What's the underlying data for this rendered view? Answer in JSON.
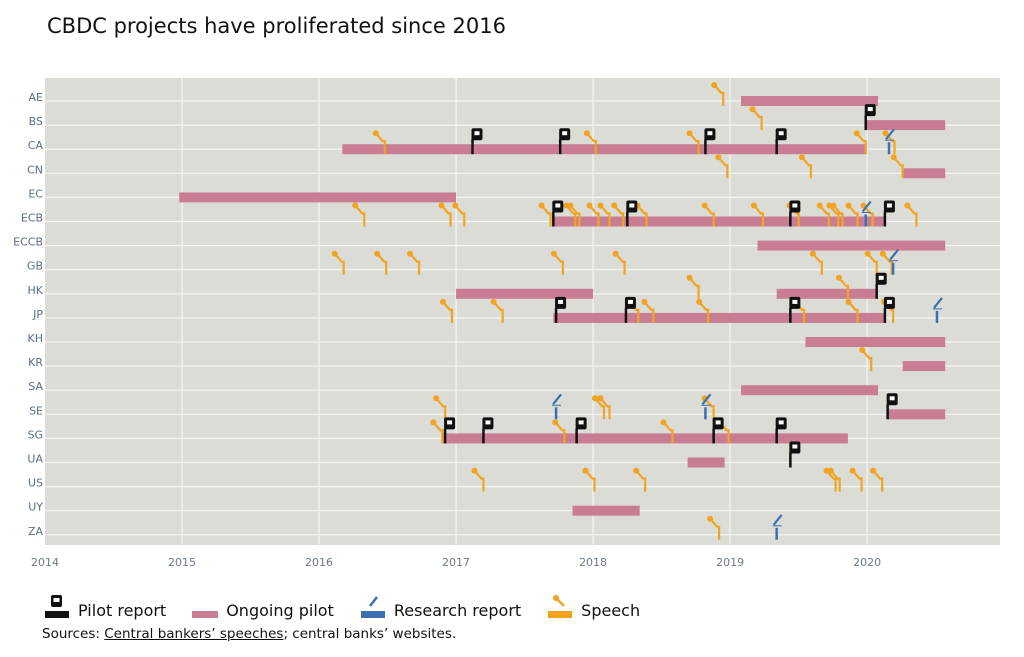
{
  "chart_data": {
    "type": "timeline",
    "title": "CBDC projects have proliferated since 2016",
    "xlim": [
      2014,
      2020.97
    ],
    "x_ticks": [
      "2014",
      "2015",
      "2016",
      "2017",
      "2018",
      "2019",
      "2020"
    ],
    "grid": true,
    "legend_placement": "bottom",
    "colors": {
      "pilot_report": "#111111",
      "ongoing_pilot": "#c97d93",
      "research_report": "#3d6fb0",
      "speech": "#f0a422",
      "background": "#dcdcd7"
    },
    "legend": [
      {
        "key": "pilot_report",
        "label": "Pilot report"
      },
      {
        "key": "ongoing_pilot",
        "label": "Ongoing pilot"
      },
      {
        "key": "research_report",
        "label": "Research report"
      },
      {
        "key": "speech",
        "label": "Speech"
      }
    ],
    "rows": [
      {
        "label": "AE",
        "pilots": [
          [
            2019.08,
            2020.08
          ]
        ],
        "pilot_reports": [],
        "research_reports": [],
        "speeches": [
          2018.95
        ]
      },
      {
        "label": "BS",
        "pilots": [
          [
            2019.99,
            2020.57
          ]
        ],
        "pilot_reports": [
          2019.99
        ],
        "research_reports": [],
        "speeches": [
          2019.23
        ]
      },
      {
        "label": "CA",
        "pilots": [
          [
            2016.17,
            2019.99
          ]
        ],
        "pilot_reports": [
          2017.12,
          2017.76,
          2018.82,
          2019.34
        ],
        "research_reports": [
          2020.16
        ],
        "speeches": [
          2016.48,
          2018.02,
          2018.77,
          2019.99,
          2020.2
        ]
      },
      {
        "label": "CN",
        "pilots": [
          [
            2020.26,
            2020.57
          ]
        ],
        "pilot_reports": [],
        "research_reports": [],
        "speeches": [
          2018.98,
          2019.59,
          2020.26
        ]
      },
      {
        "label": "EC",
        "pilots": [
          [
            2014.98,
            2017.0
          ]
        ],
        "pilot_reports": [],
        "research_reports": [],
        "speeches": []
      },
      {
        "label": "ECB",
        "pilots": [
          [
            2017.71,
            2020.13
          ]
        ],
        "pilot_reports": [
          2017.71,
          2018.25,
          2019.44,
          2020.13
        ],
        "research_reports": [
          2019.99
        ],
        "speeches": [
          2016.33,
          2016.96,
          2017.06,
          2017.69,
          2017.87,
          2017.9,
          2018.04,
          2018.12,
          2018.22,
          2018.39,
          2018.88,
          2019.24,
          2019.5,
          2019.72,
          2019.79,
          2019.82,
          2019.93,
          2020.04,
          2020.36
        ]
      },
      {
        "label": "ECCB",
        "pilots": [
          [
            2019.2,
            2020.57
          ]
        ],
        "pilot_reports": [],
        "research_reports": [],
        "speeches": []
      },
      {
        "label": "GB",
        "pilots": [],
        "pilot_reports": [],
        "research_reports": [
          2020.19
        ],
        "speeches": [
          2016.18,
          2016.49,
          2016.73,
          2017.78,
          2018.23,
          2019.67,
          2020.07,
          2020.18
        ]
      },
      {
        "label": "HK",
        "pilots": [
          [
            2017.0,
            2018.0
          ],
          [
            2019.34,
            2020.08
          ]
        ],
        "pilot_reports": [
          2020.07
        ],
        "research_reports": [],
        "speeches": [
          2018.77,
          2019.86
        ]
      },
      {
        "label": "JP",
        "pilots": [
          [
            2017.71,
            2020.13
          ]
        ],
        "pilot_reports": [
          2017.73,
          2018.24,
          2019.44,
          2020.13
        ],
        "research_reports": [
          2020.51
        ],
        "speeches": [
          2016.97,
          2017.34,
          2018.33,
          2018.44,
          2018.84,
          2019.54,
          2019.93,
          2020.19
        ]
      },
      {
        "label": "KH",
        "pilots": [
          [
            2019.55,
            2020.57
          ]
        ],
        "pilot_reports": [],
        "research_reports": [],
        "speeches": []
      },
      {
        "label": "KR",
        "pilots": [
          [
            2020.26,
            2020.57
          ]
        ],
        "pilot_reports": [],
        "research_reports": [],
        "speeches": [
          2020.03
        ]
      },
      {
        "label": "SA",
        "pilots": [
          [
            2019.08,
            2020.08
          ]
        ],
        "pilot_reports": [],
        "research_reports": [],
        "speeches": []
      },
      {
        "label": "SE",
        "pilots": [
          [
            2020.15,
            2020.57
          ]
        ],
        "pilot_reports": [
          2020.15
        ],
        "research_reports": [
          2017.73,
          2018.82
        ],
        "speeches": [
          2016.92,
          2018.08,
          2018.12,
          2018.88
        ]
      },
      {
        "label": "SG",
        "pilots": [
          [
            2016.9,
            2019.86
          ]
        ],
        "pilot_reports": [
          2016.92,
          2017.2,
          2017.88,
          2018.88,
          2019.34
        ],
        "research_reports": [],
        "speeches": [
          2016.9,
          2017.79,
          2018.58,
          2018.99
        ]
      },
      {
        "label": "UA",
        "pilots": [
          [
            2018.69,
            2018.96
          ]
        ],
        "pilot_reports": [
          2019.44
        ],
        "research_reports": [],
        "speeches": []
      },
      {
        "label": "US",
        "pilots": [],
        "pilot_reports": [],
        "research_reports": [],
        "speeches": [
          2017.2,
          2018.01,
          2018.38,
          2019.77,
          2019.8,
          2019.96,
          2020.11
        ]
      },
      {
        "label": "UY",
        "pilots": [
          [
            2017.85,
            2018.34
          ]
        ],
        "pilot_reports": [],
        "research_reports": [],
        "speeches": []
      },
      {
        "label": "ZA",
        "pilots": [],
        "pilot_reports": [],
        "research_reports": [
          2019.34
        ],
        "speeches": [
          2018.92
        ]
      }
    ]
  },
  "sources": {
    "prefix": "Sources: ",
    "link": "Central bankers’ speeches",
    "suffix": "; central banks’ websites."
  }
}
